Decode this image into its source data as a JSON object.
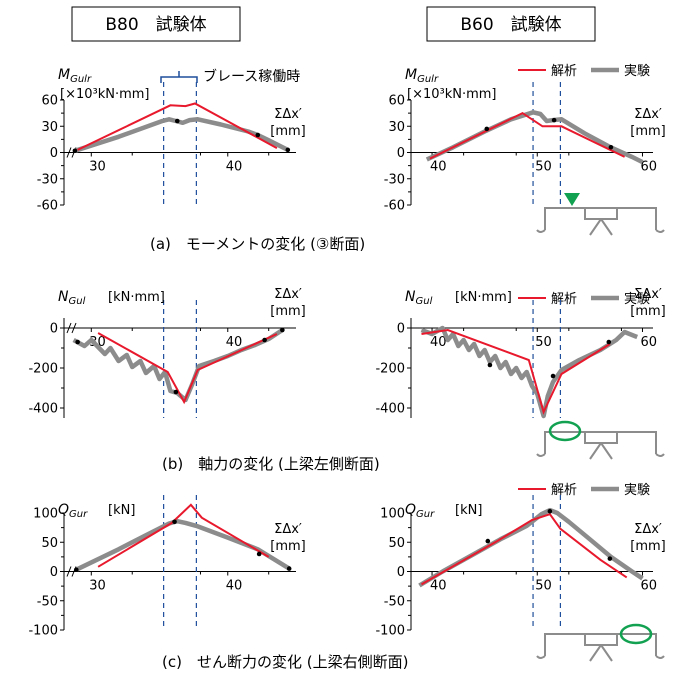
{
  "titles": {
    "left": "B80　試験体",
    "right": "B60　試験体"
  },
  "brace_label": "ブレース稼働時",
  "legend": {
    "analysis": "解析",
    "experiment": "実験"
  },
  "colors": {
    "analysis": "#e8192c",
    "experiment": "#8c8c8c",
    "dashed": "#1f4e9c",
    "marker_green": "#12a150"
  },
  "captions": {
    "a": "(a)　モーメントの変化 (③断面)",
    "b": "(b)　軸力の変化 (上梁左側断面)",
    "c": "(c)　せん断力の変化 (上梁右側断面)"
  },
  "chart_data": [
    {
      "id": "a-left",
      "type": "line",
      "ylabel": "M",
      "ylabel_sub": "Gulr",
      "yunit": "[×10³kN·mm]",
      "xlabel": "ΣΔx′",
      "xunit": "[mm]",
      "xlim": [
        28,
        45
      ],
      "ylim": [
        -60,
        60
      ],
      "xticks": [
        30,
        40
      ],
      "yticks": [
        60,
        30,
        0,
        -30,
        -60
      ],
      "ytick_labels": [
        "60",
        "30",
        "0",
        "-30",
        "-60"
      ],
      "axis_break": true,
      "dashed_x": [
        35.3,
        37.7
      ],
      "brace_span": [
        35.3,
        37.7
      ],
      "series": [
        {
          "name": "解析",
          "role": "analysis",
          "x": [
            29,
            35.8,
            36.9,
            37.6,
            43.6
          ],
          "y": [
            3,
            54,
            53,
            56,
            5
          ]
        },
        {
          "name": "実験",
          "role": "experiment",
          "x": [
            28.8,
            32,
            35.2,
            35.7,
            36.2,
            36.7,
            37.2,
            37.8,
            39.5,
            41.5,
            42.2,
            43,
            44.4
          ],
          "y": [
            2,
            18,
            36,
            38,
            36,
            34,
            37,
            38,
            32,
            24,
            20,
            14,
            3
          ]
        }
      ],
      "markers": [
        [
          36.3,
          36
        ],
        [
          42.2,
          20
        ],
        [
          28.8,
          2
        ],
        [
          44.4,
          3
        ]
      ]
    },
    {
      "id": "a-right",
      "type": "line",
      "ylabel": "M",
      "ylabel_sub": "Gulr",
      "yunit": "[×10³kN·mm]",
      "xlabel": "ΣΔx′",
      "xunit": "[mm]",
      "xlim": [
        38,
        61
      ],
      "ylim": [
        -60,
        60
      ],
      "xticks": [
        40,
        50,
        60
      ],
      "yticks": [
        60,
        30,
        0,
        -30,
        -60
      ],
      "ytick_labels": [
        "60",
        "30",
        "0",
        "-30",
        "-60"
      ],
      "axis_break": false,
      "dashed_x": [
        49.6,
        52.2
      ],
      "series": [
        {
          "name": "解析",
          "role": "analysis",
          "x": [
            39.8,
            48.6,
            50.5,
            52.3,
            58.3
          ],
          "y": [
            -7,
            45,
            30,
            30,
            -5
          ]
        },
        {
          "name": "実験",
          "role": "experiment",
          "x": [
            39.5,
            42,
            45,
            47.5,
            49.6,
            50.3,
            50.9,
            51.5,
            52.3,
            54.5,
            56.8,
            59,
            60
          ],
          "y": [
            -8,
            6,
            24,
            38,
            46,
            44,
            36,
            37,
            38,
            22,
            7,
            -5,
            -11
          ]
        }
      ],
      "markers": [
        [
          45.2,
          27
        ],
        [
          51.6,
          37
        ],
        [
          57,
          6
        ]
      ]
    },
    {
      "id": "b-left",
      "type": "line",
      "ylabel": "N",
      "ylabel_sub": "Gul",
      "yunit": "[kN·mm]",
      "xlabel": "ΣΔx′",
      "xunit": "[mm]",
      "xlim": [
        28,
        45
      ],
      "ylim": [
        -450,
        50
      ],
      "xticks": [
        30,
        40
      ],
      "yticks": [
        0,
        -200,
        -400
      ],
      "ytick_labels": [
        "0",
        "-200",
        "-400"
      ],
      "axis_break": true,
      "dashed_x": [
        35.3,
        37.7
      ],
      "series": [
        {
          "name": "解析",
          "role": "analysis",
          "x": [
            30.5,
            35.6,
            36.8,
            37.8,
            43.6
          ],
          "y": [
            -25,
            -220,
            -370,
            -210,
            -30
          ]
        },
        {
          "name": "実験",
          "role": "experiment",
          "x": [
            28.7,
            29.5,
            30,
            31,
            31.4,
            32,
            32.6,
            33,
            33.6,
            34,
            34.6,
            35,
            35.4,
            35.8,
            36.3,
            36.9,
            37.4,
            37.9,
            39,
            40,
            41,
            42,
            43,
            44
          ],
          "y": [
            -60,
            -90,
            -60,
            -130,
            -100,
            -165,
            -135,
            -195,
            -165,
            -225,
            -190,
            -255,
            -220,
            -315,
            -325,
            -360,
            -280,
            -190,
            -165,
            -140,
            -110,
            -85,
            -55,
            -10
          ]
        }
      ],
      "markers": [
        [
          29,
          -70
        ],
        [
          36.2,
          -320
        ],
        [
          42.7,
          -60
        ],
        [
          44,
          -10
        ]
      ]
    },
    {
      "id": "b-right",
      "type": "line",
      "ylabel": "N",
      "ylabel_sub": "Gul",
      "yunit": "[kN·mm]",
      "xlabel": "ΣΔx′",
      "xunit": "[mm]",
      "xlim": [
        38,
        61
      ],
      "ylim": [
        -450,
        50
      ],
      "xticks": [
        40,
        50,
        60
      ],
      "yticks": [
        0,
        -200,
        -400
      ],
      "ytick_labels": [
        "0",
        "-200",
        "-400"
      ],
      "axis_break": false,
      "dashed_x": [
        49.6,
        52.2
      ],
      "series": [
        {
          "name": "解析",
          "role": "analysis",
          "x": [
            39,
            41.5,
            49.2,
            50.6,
            52.3,
            56.9
          ],
          "y": [
            -30,
            -10,
            -160,
            -420,
            -230,
            -80
          ]
        },
        {
          "name": "実験",
          "role": "experiment",
          "x": [
            39,
            40,
            41,
            41.5,
            42,
            42.5,
            43,
            43.5,
            44,
            44.5,
            45,
            45.5,
            46,
            46.5,
            47,
            47.5,
            48,
            48.5,
            49,
            49.5,
            50,
            50.6,
            51,
            51.5,
            52.3,
            54,
            56,
            57.5,
            58.3,
            59.5
          ],
          "y": [
            -10,
            -30,
            0,
            -60,
            -30,
            -90,
            -60,
            -110,
            -80,
            -140,
            -110,
            -170,
            -140,
            -200,
            -170,
            -230,
            -200,
            -250,
            -220,
            -290,
            -330,
            -440,
            -340,
            -270,
            -210,
            -160,
            -110,
            -60,
            -20,
            -45
          ]
        }
      ],
      "markers": [
        [
          45.5,
          -185
        ],
        [
          51.5,
          -240
        ],
        [
          56.8,
          -70
        ]
      ]
    },
    {
      "id": "c-left",
      "type": "line",
      "ylabel": "Q",
      "ylabel_sub": "Gur",
      "yunit": "[kN]",
      "xlabel": "ΣΔx′",
      "xunit": "[mm]",
      "xlim": [
        28,
        45
      ],
      "ylim": [
        -100,
        100
      ],
      "xticks": [
        30,
        40
      ],
      "yticks": [
        100,
        50,
        0,
        -50,
        -100
      ],
      "ytick_labels": [
        "100",
        "50",
        "0",
        "-50",
        "-100"
      ],
      "axis_break": true,
      "dashed_x": [
        35.3,
        37.7
      ],
      "series": [
        {
          "name": "解析",
          "role": "analysis",
          "x": [
            30.5,
            35.9,
            37.3,
            38.1,
            43
          ],
          "y": [
            8,
            83,
            114,
            92,
            25
          ]
        },
        {
          "name": "実験",
          "role": "experiment",
          "x": [
            28.9,
            32,
            34,
            35.7,
            36.3,
            36.9,
            37.7,
            40,
            42.2,
            44.5
          ],
          "y": [
            3,
            38,
            62,
            82,
            86,
            83,
            78,
            58,
            38,
            5
          ]
        }
      ],
      "markers": [
        [
          36.1,
          85
        ],
        [
          42.3,
          30
        ],
        [
          28.9,
          3
        ],
        [
          44.5,
          5
        ]
      ]
    },
    {
      "id": "c-right",
      "type": "line",
      "ylabel": "Q",
      "ylabel_sub": "Gur",
      "yunit": "[kN]",
      "xlabel": "ΣΔx′",
      "xunit": "[mm]",
      "xlim": [
        38,
        61
      ],
      "ylim": [
        -100,
        100
      ],
      "xticks": [
        40,
        50,
        60
      ],
      "yticks": [
        100,
        50,
        0,
        -50,
        -100
      ],
      "ytick_labels": [
        "100",
        "50",
        "0",
        "-50",
        "-100"
      ],
      "axis_break": false,
      "dashed_x": [
        49.6,
        52.2
      ],
      "series": [
        {
          "name": "解析",
          "role": "analysis",
          "x": [
            39,
            46,
            49.5,
            51.2,
            52.2,
            56,
            58.5
          ],
          "y": [
            -22,
            50,
            88,
            98,
            73,
            20,
            -10
          ]
        },
        {
          "name": "実験",
          "role": "experiment",
          "x": [
            38.8,
            41,
            44,
            46.5,
            49,
            50.4,
            51.2,
            51.9,
            53,
            55,
            57,
            59,
            60
          ],
          "y": [
            -24,
            0,
            30,
            55,
            78,
            98,
            105,
            100,
            85,
            55,
            25,
            0,
            -12
          ]
        }
      ],
      "markers": [
        [
          45.3,
          52
        ],
        [
          51.2,
          103
        ],
        [
          56.9,
          22
        ]
      ]
    }
  ]
}
